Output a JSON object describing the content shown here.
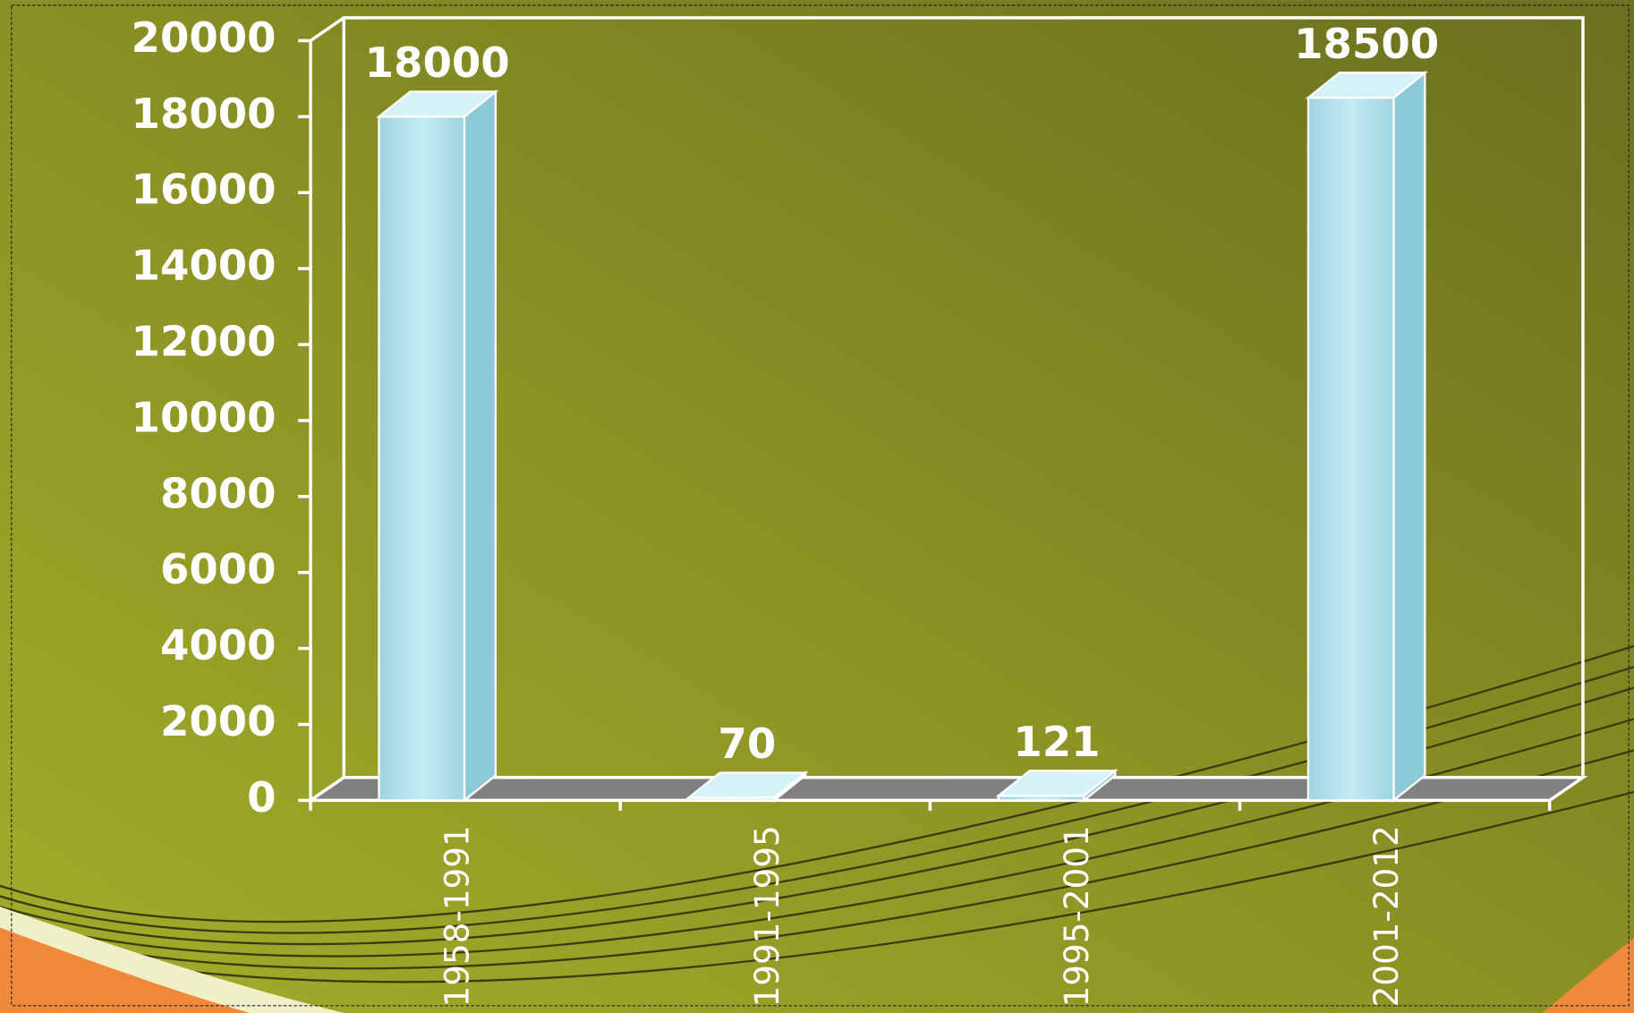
{
  "chart_data": {
    "type": "bar3d",
    "categories": [
      "1958-1991",
      "1991-1995",
      "1995-2001",
      "2001-2012"
    ],
    "values": [
      18000,
      70,
      121,
      18500
    ],
    "color": "#a8dde8",
    "ylim": [
      0,
      20000
    ],
    "yticks": [
      0,
      2000,
      4000,
      6000,
      8000,
      10000,
      12000,
      14000,
      16000,
      18000,
      20000
    ]
  }
}
